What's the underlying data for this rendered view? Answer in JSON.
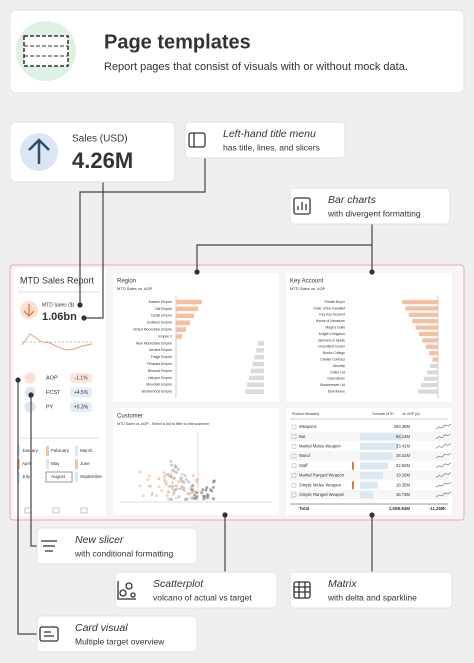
{
  "header": {
    "title": "Page templates",
    "subtitle": "Report pages that consist of visuals with or without mock data."
  },
  "kpi_card": {
    "label": "Sales (USD)",
    "value": "4.26M"
  },
  "callouts": [
    {
      "title": "Left-hand title menu",
      "subtitle": "has title, lines, and slicers"
    },
    {
      "title": "Bar charts",
      "subtitle": "with divergent formatting"
    },
    {
      "title": "New slicer",
      "subtitle": "with conditional formatting"
    },
    {
      "title": "Scatterplot",
      "subtitle": "volcano of actual vs target"
    },
    {
      "title": "Matrix",
      "subtitle": "with delta and sparkline"
    },
    {
      "title": "Card visual",
      "subtitle": "Multiple target overview"
    }
  ],
  "report": {
    "title": "MTD Sales Report",
    "kpi_label": "MTD Sales ($)",
    "kpi_value": "1.06bn",
    "targets": [
      {
        "name": "AOP",
        "delta": "-1.1%"
      },
      {
        "name": "FCST",
        "delta": "+4.5%"
      },
      {
        "name": "PY",
        "delta": "+0.3%"
      }
    ],
    "months": [
      "January",
      "February",
      "March",
      "April",
      "May",
      "June",
      "July",
      "August",
      "September"
    ],
    "selected_month": "August"
  },
  "region": {
    "title": "Region",
    "subtitle": "MTD Sales vs. AOP",
    "categories": [
      "Eastern Empire",
      "Old Empire",
      "Castle Empire",
      "Southern Empire",
      "United Moonshine Empire",
      "Empire 2",
      "New Moonshine Empire",
      "Ancient Empire",
      "Fridge Empire",
      "Pleasant Empire",
      "Bedrock Empire",
      "Halcyon Empire",
      "Mountain Empire",
      "Brotherhood Empire"
    ]
  },
  "key_account": {
    "title": "Key Account",
    "subtitle": "MTD Sales vs. AOP",
    "categories": [
      "Private Buyer",
      "Order of the Gauntlet",
      "Key Key Account",
      "House of Nevadore",
      "Mage's Guild",
      "Knight's Kingdom",
      "Spinners & Spells",
      "Greenfield Center",
      "Nordic College",
      "Civilian Contract",
      "Security",
      "Knifer Ltd",
      "Greenstone",
      "Bladebrewer Ltd",
      "Elvenhome"
    ]
  },
  "customer": {
    "title": "Customer",
    "subtitle": "MTD Sales vs. AOP - Select a dot to filter to that customer"
  },
  "matrix": {
    "headers": [
      "Product Hierarchy",
      "Turnover MTD",
      "vs. AOP (Δ)"
    ],
    "rows": [
      [
        "Weapons",
        "283.38M"
      ],
      [
        "Bat",
        "94.13M"
      ],
      [
        "Martial Melee Weapon",
        "33.41M"
      ],
      [
        "Wand",
        "28.41M"
      ],
      [
        "Staff",
        "22.50M"
      ],
      [
        "Martial Ranged Weapon",
        "19.16M"
      ],
      [
        "Simple Melee Weapon",
        "18.35M"
      ],
      [
        "Simple Ranged Weapon",
        "15.73M"
      ]
    ],
    "total": [
      "Total",
      "1,058.84M",
      "-11,288K"
    ]
  }
}
